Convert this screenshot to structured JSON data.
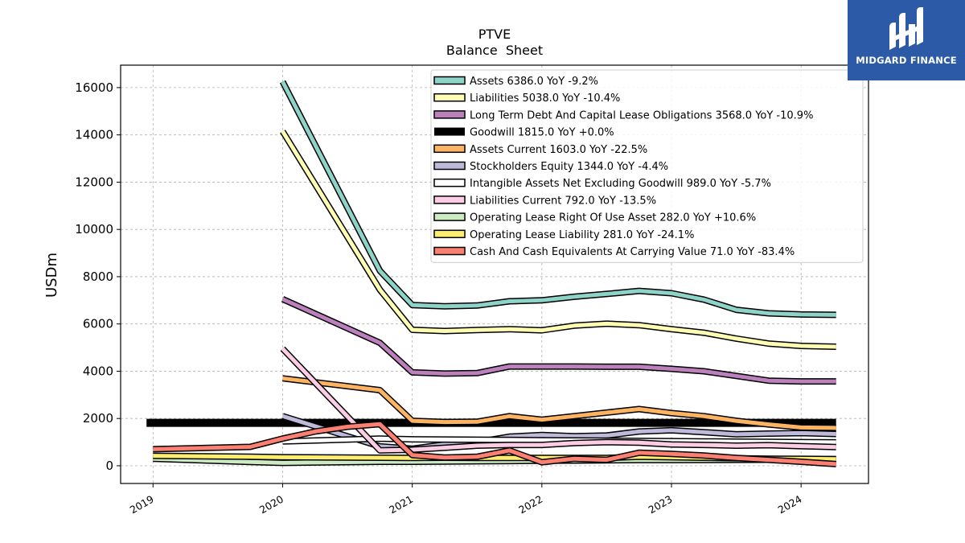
{
  "logo": {
    "text": "MIDGARD FINANCE",
    "bg_color": "#2c5aa6"
  },
  "chart_data": {
    "type": "line",
    "title": "PTVE",
    "subtitle": "Balance  Sheet",
    "xlabel": "",
    "ylabel": "USDm",
    "xlim": [
      2018.75,
      2024.52
    ],
    "ylim": [
      -750,
      16950
    ],
    "x_ticks": [
      2019,
      2020,
      2021,
      2022,
      2023,
      2024
    ],
    "x_tick_labels": [
      "2019",
      "2020",
      "2021",
      "2022",
      "2023",
      "2024"
    ],
    "y_ticks": [
      0,
      2000,
      4000,
      6000,
      8000,
      10000,
      12000,
      14000,
      16000
    ],
    "y_tick_labels": [
      "0",
      "2000",
      "4000",
      "6000",
      "8000",
      "10000",
      "12000",
      "14000",
      "16000"
    ],
    "grid": true,
    "legend_position": "top-right",
    "series": [
      {
        "name": "Assets  6386.0 YoY -9.2%",
        "color": "#8dd3c7",
        "x": [
          2020.0,
          2020.75,
          2021.0,
          2021.25,
          2021.5,
          2021.75,
          2022.0,
          2022.25,
          2022.5,
          2022.75,
          2023.0,
          2023.25,
          2023.5,
          2023.75,
          2024.0,
          2024.27
        ],
        "values": [
          16250,
          8250,
          6800,
          6750,
          6780,
          6960,
          7000,
          7150,
          7270,
          7400,
          7300,
          7030,
          6600,
          6450,
          6400,
          6386
        ]
      },
      {
        "name": "Liabilities  5038.0 YoY -10.4%",
        "color": "#ffffb3",
        "x": [
          2020.0,
          2020.75,
          2021.0,
          2021.25,
          2021.5,
          2021.75,
          2022.0,
          2022.25,
          2022.5,
          2022.75,
          2023.0,
          2023.25,
          2023.5,
          2023.75,
          2024.0,
          2024.27
        ],
        "values": [
          14150,
          7450,
          5750,
          5700,
          5740,
          5780,
          5730,
          5930,
          6010,
          5950,
          5780,
          5630,
          5380,
          5170,
          5070,
          5038
        ]
      },
      {
        "name": "Long Term Debt And Capital Lease Obligations  3568.0 YoY -10.9%",
        "color": "#bc80bd",
        "x": [
          2020.0,
          2020.75,
          2021.0,
          2021.25,
          2021.5,
          2021.75,
          2022.0,
          2022.25,
          2022.5,
          2022.75,
          2023.0,
          2023.25,
          2023.5,
          2023.75,
          2024.0,
          2024.27
        ],
        "values": [
          7050,
          5200,
          3950,
          3900,
          3920,
          4200,
          4200,
          4200,
          4190,
          4190,
          4100,
          4000,
          3800,
          3600,
          3570,
          3568
        ]
      },
      {
        "name": "Goodwill  1815.0 YoY +0.0%",
        "color": "#000000",
        "band": true,
        "x": [
          2018.95,
          2024.27
        ],
        "values": [
          1815,
          1815
        ]
      },
      {
        "name": "Assets Current  1603.0 YoY -22.5%",
        "color": "#fdb462",
        "x": [
          2020.0,
          2020.75,
          2021.0,
          2021.25,
          2021.5,
          2021.75,
          2022.0,
          2022.25,
          2022.5,
          2022.75,
          2023.0,
          2023.25,
          2023.5,
          2023.75,
          2024.0,
          2024.27
        ],
        "values": [
          3700,
          3200,
          1900,
          1850,
          1860,
          2100,
          1950,
          2100,
          2250,
          2400,
          2230,
          2100,
          1900,
          1750,
          1620,
          1603
        ]
      },
      {
        "name": "Stockholders Equity  1344.0 YoY -4.4%",
        "color": "#bebada",
        "x": [
          2020.0,
          2020.75,
          2021.0,
          2021.25,
          2021.5,
          2021.75,
          2022.0,
          2022.25,
          2022.5,
          2022.75,
          2023.0,
          2023.25,
          2023.5,
          2023.75,
          2024.0,
          2024.27
        ],
        "values": [
          2100,
          820,
          720,
          900,
          1000,
          1230,
          1300,
          1250,
          1280,
          1450,
          1500,
          1420,
          1330,
          1360,
          1380,
          1344
        ]
      },
      {
        "name": "Intangible Assets Net Excluding Goodwill  989.0 YoY -5.7%",
        "color": "#ffffff",
        "x": [
          2020.0,
          2020.75,
          2021.0,
          2021.25,
          2021.5,
          2021.75,
          2022.0,
          2022.25,
          2022.5,
          2022.75,
          2023.0,
          2023.25,
          2023.5,
          2023.75,
          2024.0,
          2024.27
        ],
        "values": [
          1030,
          1150,
          1120,
          1110,
          1100,
          1090,
          1080,
          1070,
          1060,
          1050,
          1040,
          1030,
          1020,
          1010,
          1000,
          989
        ]
      },
      {
        "name": "Liabilities Current  792.0 YoY -13.5%",
        "color": "#fccde5",
        "x": [
          2020.0,
          2020.75,
          2021.0,
          2021.25,
          2021.5,
          2021.75,
          2022.0,
          2022.25,
          2022.5,
          2022.75,
          2023.0,
          2023.25,
          2023.5,
          2023.75,
          2024.0,
          2024.27
        ],
        "values": [
          4950,
          650,
          680,
          760,
          850,
          880,
          880,
          960,
          1000,
          980,
          900,
          880,
          850,
          870,
          830,
          792
        ]
      },
      {
        "name": "Operating Lease Right Of Use Asset  282.0 YoY +10.6%",
        "color": "#ccebc5",
        "x": [
          2019.0,
          2019.75,
          2020.0,
          2020.75,
          2021.0,
          2021.25,
          2021.5,
          2021.75,
          2022.0,
          2022.25,
          2022.5,
          2022.75,
          2023.0,
          2023.25,
          2023.5,
          2023.75,
          2024.0,
          2024.27
        ],
        "values": [
          300,
          160,
          120,
          170,
          170,
          180,
          190,
          200,
          210,
          220,
          230,
          240,
          240,
          245,
          250,
          255,
          260,
          282
        ]
      },
      {
        "name": "Operating Lease Liability  281.0 YoY -24.1%",
        "color": "#ffed6f",
        "x": [
          2019.0,
          2019.75,
          2020.0,
          2020.75,
          2021.0,
          2021.25,
          2021.5,
          2021.75,
          2022.0,
          2022.25,
          2022.5,
          2022.75,
          2023.0,
          2023.25,
          2023.5,
          2023.75,
          2024.0,
          2024.27
        ],
        "values": [
          420,
          380,
          360,
          340,
          330,
          340,
          330,
          330,
          330,
          330,
          330,
          380,
          360,
          340,
          320,
          300,
          290,
          281
        ]
      },
      {
        "name": "Cash And Cash Equivalents At Carrying Value  71.0 YoY -83.4%",
        "color": "#fb8072",
        "x": [
          2019.0,
          2019.75,
          2020.0,
          2020.25,
          2020.5,
          2020.75,
          2021.0,
          2021.25,
          2021.5,
          2021.75,
          2022.0,
          2022.25,
          2022.5,
          2022.75,
          2023.0,
          2023.25,
          2023.5,
          2023.75,
          2024.0,
          2024.27
        ],
        "values": [
          700,
          800,
          1150,
          1450,
          1650,
          1760,
          450,
          350,
          380,
          650,
          150,
          300,
          250,
          550,
          500,
          430,
          330,
          250,
          170,
          71
        ]
      }
    ]
  }
}
